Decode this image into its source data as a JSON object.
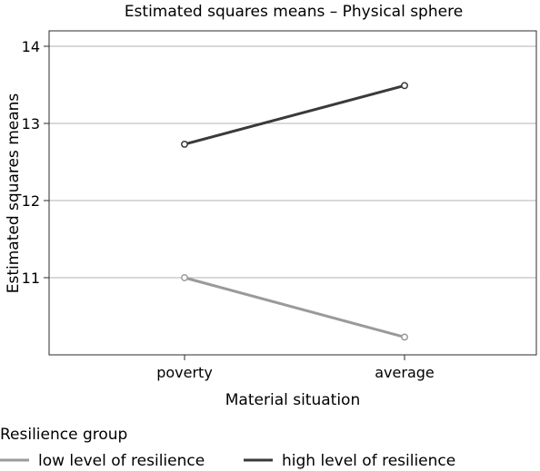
{
  "chart_data": {
    "type": "line",
    "title": "Estimated squares means – Physical sphere",
    "xlabel": "Material situation",
    "ylabel": "Estimated squares means",
    "categories": [
      "poverty",
      "average"
    ],
    "ylim": [
      10.0,
      14.2
    ],
    "yticks": [
      11,
      12,
      13,
      14
    ],
    "grid": true,
    "legend": {
      "title": "Resilience group",
      "placement": "bottom-left"
    },
    "series": [
      {
        "name": "low level of resilience",
        "values": [
          11.0,
          10.23
        ],
        "color": "#9a9a9a"
      },
      {
        "name": "high level of resilience",
        "values": [
          12.73,
          13.49
        ],
        "color": "#3a3a3a"
      }
    ]
  }
}
